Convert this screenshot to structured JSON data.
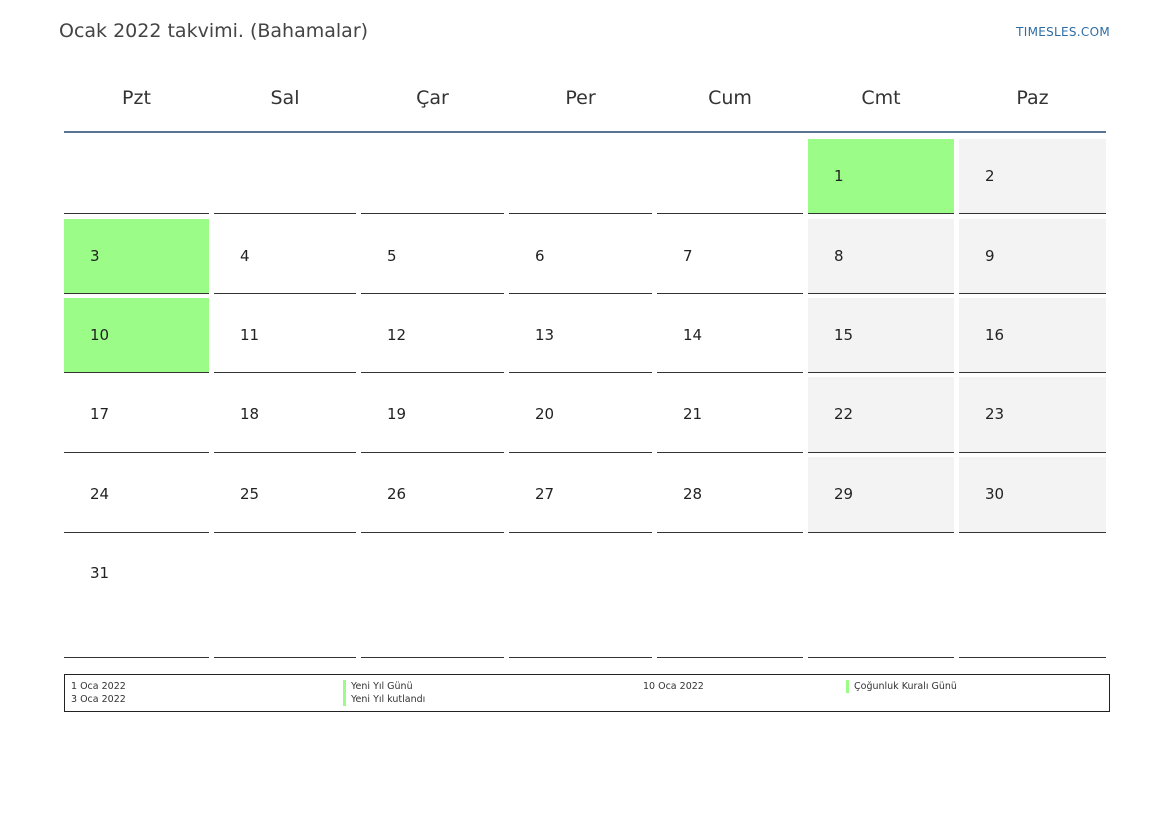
{
  "header": {
    "title": "Ocak 2022 takvimi. (Bahamalar)",
    "brand": "TIMESLES.COM"
  },
  "colors": {
    "holiday": "#9cfc88",
    "weekend": "#f3f3f3",
    "header_rule": "#5b7393",
    "brand": "#2e6da4"
  },
  "weekdays": [
    "Pzt",
    "Sal",
    "Çar",
    "Per",
    "Cum",
    "Cmt",
    "Paz"
  ],
  "weeks": [
    [
      null,
      null,
      null,
      null,
      null,
      {
        "day": "1",
        "type": "holiday"
      },
      {
        "day": "2",
        "type": "weekend"
      }
    ],
    [
      {
        "day": "3",
        "type": "holiday"
      },
      {
        "day": "4",
        "type": "normal"
      },
      {
        "day": "5",
        "type": "normal"
      },
      {
        "day": "6",
        "type": "normal"
      },
      {
        "day": "7",
        "type": "normal"
      },
      {
        "day": "8",
        "type": "weekend"
      },
      {
        "day": "9",
        "type": "weekend"
      }
    ],
    [
      {
        "day": "10",
        "type": "holiday"
      },
      {
        "day": "11",
        "type": "normal"
      },
      {
        "day": "12",
        "type": "normal"
      },
      {
        "day": "13",
        "type": "normal"
      },
      {
        "day": "14",
        "type": "normal"
      },
      {
        "day": "15",
        "type": "weekend"
      },
      {
        "day": "16",
        "type": "weekend"
      }
    ],
    [
      {
        "day": "17",
        "type": "normal"
      },
      {
        "day": "18",
        "type": "normal"
      },
      {
        "day": "19",
        "type": "normal"
      },
      {
        "day": "20",
        "type": "normal"
      },
      {
        "day": "21",
        "type": "normal"
      },
      {
        "day": "22",
        "type": "weekend"
      },
      {
        "day": "23",
        "type": "weekend"
      }
    ],
    [
      {
        "day": "24",
        "type": "normal"
      },
      {
        "day": "25",
        "type": "normal"
      },
      {
        "day": "26",
        "type": "normal"
      },
      {
        "day": "27",
        "type": "normal"
      },
      {
        "day": "28",
        "type": "normal"
      },
      {
        "day": "29",
        "type": "weekend"
      },
      {
        "day": "30",
        "type": "weekend"
      }
    ],
    [
      {
        "day": "31",
        "type": "normal"
      },
      null,
      null,
      null,
      null,
      null,
      null
    ]
  ],
  "legend": {
    "dates_left": [
      "1 Oca 2022",
      "3 Oca 2022"
    ],
    "names_left": [
      "Yeni Yıl Günü",
      "Yeni Yıl kutlandı"
    ],
    "dates_right": [
      "10 Oca 2022"
    ],
    "names_right": [
      "Çoğunluk Kuralı Günü"
    ]
  }
}
